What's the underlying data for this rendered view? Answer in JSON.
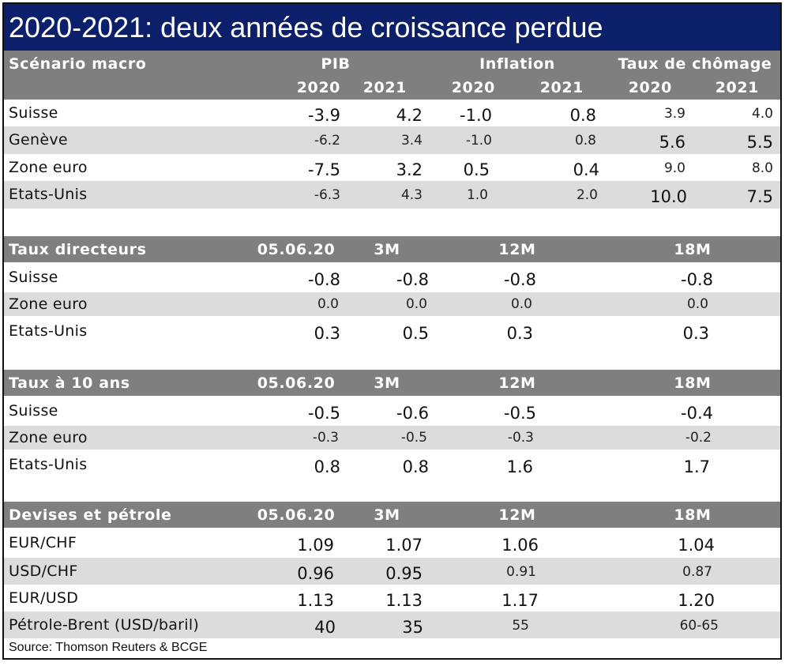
{
  "title": "2020-2021: deux années de croissance perdue",
  "macro": {
    "header": {
      "scenario": "Scénario macro",
      "pib": "PIB",
      "inflation": "Inflation",
      "chomage": "Taux de chômage"
    },
    "years": [
      "2020",
      "2021",
      "2020",
      "2021",
      "2020",
      "2021"
    ],
    "rows": [
      {
        "label": "Suisse",
        "values": [
          "-3.9",
          "4.2",
          "-1.0",
          "0.8",
          "3.9",
          "4.0"
        ]
      },
      {
        "label": "Genève",
        "values": [
          "-6.2",
          "3.4",
          "-1.0",
          "0.8",
          "5.6",
          "5.5"
        ]
      },
      {
        "label": "Zone euro",
        "values": [
          "-7.5",
          "3.2",
          "0.5",
          "0.4",
          "9.0",
          "8.0"
        ]
      },
      {
        "label": "Etats-Unis",
        "values": [
          "-6.3",
          "4.3",
          "1.0",
          "2.0",
          "10.0",
          "7.5"
        ]
      }
    ]
  },
  "taux_directeurs": {
    "header": [
      "Taux directeurs",
      "05.06.20",
      "3M",
      "12M",
      "18M"
    ],
    "rows": [
      {
        "label": "Suisse",
        "values": [
          "-0.8",
          "-0.8",
          "-0.8",
          "-0.8"
        ]
      },
      {
        "label": "Zone euro",
        "values": [
          "0.0",
          "0.0",
          "0.0",
          "0.0"
        ]
      },
      {
        "label": "Etats-Unis",
        "values": [
          "0.3",
          "0.5",
          "0.3",
          "0.3"
        ]
      }
    ]
  },
  "taux_10": {
    "header": [
      "Taux à 10 ans",
      "05.06.20",
      "3M",
      "12M",
      "18M"
    ],
    "rows": [
      {
        "label": "Suisse",
        "values": [
          "-0.5",
          "-0.6",
          "-0.5",
          "-0.4"
        ]
      },
      {
        "label": "Zone euro",
        "values": [
          "-0.3",
          "-0.5",
          "-0.3",
          "-0.2"
        ]
      },
      {
        "label": "Etats-Unis",
        "values": [
          "0.8",
          "0.8",
          "1.6",
          "1.7"
        ]
      }
    ]
  },
  "devises": {
    "header": [
      "Devises et pétrole",
      "05.06.20",
      "3M",
      "12M",
      "18M"
    ],
    "rows": [
      {
        "label": "EUR/CHF",
        "values": [
          "1.09",
          "1.07",
          "1.06",
          "1.04"
        ]
      },
      {
        "label": "USD/CHF",
        "values": [
          "0.96",
          "0.95",
          "0.91",
          "0.87"
        ]
      },
      {
        "label": "EUR/USD",
        "values": [
          "1.13",
          "1.13",
          "1.17",
          "1.20"
        ]
      },
      {
        "label": "Pétrole-Brent (USD/baril)",
        "values": [
          "40",
          "35",
          "55",
          "60-65"
        ]
      }
    ]
  },
  "source": "Source: Thomson Reuters & BCGE"
}
